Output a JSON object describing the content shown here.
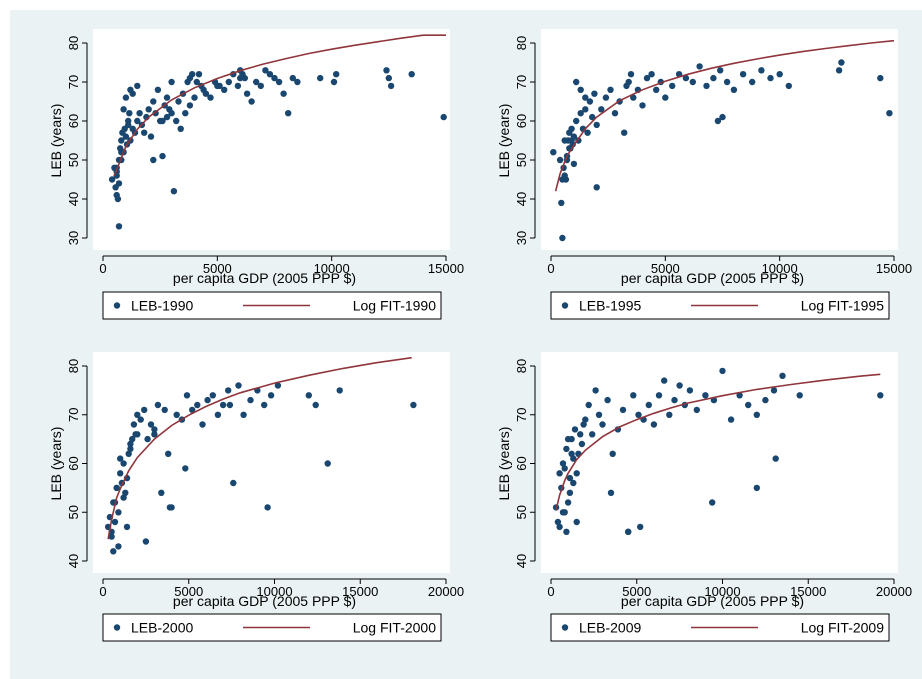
{
  "colors": {
    "background": "#eaf2f3",
    "plot_area": "#ffffff",
    "marker": "#1a476f",
    "fit_line": "#90353b"
  },
  "chart_data": [
    {
      "type": "scatter",
      "xlabel": "per capita GDP (2005 PPP $)",
      "ylabel": "LEB (years)",
      "xlim": [
        0,
        15000
      ],
      "ylim": [
        30,
        80
      ],
      "xticks": [
        0,
        5000,
        10000,
        15000
      ],
      "yticks": [
        30,
        40,
        50,
        60,
        70,
        80
      ],
      "legend": {
        "placement": "bottom",
        "entries": [
          "LEB-1990",
          "Log FIT-1990"
        ]
      },
      "series": [
        {
          "name": "LEB-1990",
          "kind": "points",
          "x": [
            400,
            500,
            550,
            600,
            650,
            700,
            750,
            800,
            850,
            900,
            950,
            1000,
            1050,
            1100,
            1150,
            1200,
            1300,
            1400,
            1500,
            1600,
            1700,
            1800,
            1900,
            2000,
            2100,
            2200,
            2300,
            2400,
            2500,
            2600,
            2700,
            2800,
            2900,
            3000,
            3100,
            3200,
            3300,
            3400,
            3500,
            3600,
            3700,
            3800,
            3900,
            4000,
            4100,
            4200,
            4300,
            4400,
            4500,
            4700,
            4900,
            5100,
            5300,
            5500,
            5700,
            5900,
            6000,
            6100,
            6200,
            6300,
            6500,
            6700,
            6900,
            7100,
            7300,
            7500,
            7700,
            7900,
            8100,
            8300,
            8500,
            700,
            600,
            900,
            1100,
            1300,
            1500,
            2800,
            3000,
            3800,
            5000,
            6000,
            9500,
            10100,
            10200,
            12400,
            12500,
            12600,
            13500,
            14900,
            600,
            800,
            1000,
            1200,
            600,
            700,
            800,
            2200,
            2600
          ],
          "y": [
            45,
            48,
            43,
            41,
            40,
            50,
            53,
            55,
            57,
            52,
            58,
            56,
            54,
            60,
            62,
            55,
            58,
            57,
            60,
            62,
            59,
            57,
            61,
            63,
            56,
            65,
            62,
            68,
            60,
            51,
            64,
            66,
            63,
            62,
            42,
            60,
            65,
            58,
            67,
            62,
            70,
            71,
            72,
            66,
            70,
            72,
            69,
            68,
            67,
            66,
            70,
            69,
            68,
            70,
            72,
            69,
            73,
            72,
            71,
            67,
            65,
            70,
            69,
            73,
            72,
            71,
            70,
            67,
            62,
            71,
            70,
            33,
            46,
            63,
            59,
            67,
            69,
            61,
            70,
            64,
            69,
            71,
            71,
            70,
            72,
            73,
            71,
            69,
            72,
            61,
            47,
            52,
            66,
            68,
            48,
            44,
            50,
            50,
            60
          ]
        },
        {
          "name": "Log FIT-1990",
          "kind": "line",
          "x": [
            500,
            1000,
            1500,
            2000,
            3000,
            4000,
            5000,
            6000,
            7000,
            8000,
            9000,
            10000,
            11000,
            12000,
            13000,
            14000,
            15000
          ],
          "y": [
            46,
            53.5,
            57.9,
            61,
            65.4,
            68.5,
            70.9,
            72.9,
            74.6,
            76,
            77.3,
            78.4,
            79.4,
            80.3,
            81.2,
            82,
            82.7
          ]
        }
      ]
    },
    {
      "type": "scatter",
      "xlabel": "per capita GDP (2005 PPP $)",
      "ylabel": "LEB (years)",
      "xlim": [
        0,
        15000
      ],
      "ylim": [
        30,
        80
      ],
      "xticks": [
        0,
        5000,
        10000,
        15000
      ],
      "yticks": [
        30,
        40,
        50,
        60,
        70,
        80
      ],
      "legend": {
        "placement": "bottom",
        "entries": [
          "LEB-1995",
          "Log FIT-1995"
        ]
      },
      "series": [
        {
          "name": "LEB-1995",
          "kind": "points",
          "x": [
            100,
            400,
            450,
            500,
            550,
            600,
            650,
            700,
            750,
            800,
            850,
            900,
            950,
            1000,
            1100,
            1200,
            1300,
            1400,
            1500,
            1600,
            1700,
            1800,
            1900,
            2000,
            2200,
            2400,
            2600,
            2800,
            3000,
            3200,
            3400,
            3600,
            3800,
            4000,
            4200,
            4400,
            4600,
            4800,
            5000,
            5300,
            5600,
            5900,
            6200,
            6500,
            6800,
            7100,
            7400,
            7700,
            8000,
            8400,
            8800,
            9200,
            9600,
            10000,
            10400,
            12600,
            12700,
            14400,
            14800,
            500,
            700,
            900,
            2000,
            1100,
            1300,
            1500,
            3300,
            3500,
            7300,
            7500,
            600,
            800,
            1000
          ],
          "y": [
            52,
            50,
            39,
            30,
            48,
            46,
            45,
            50,
            55,
            57,
            53,
            58,
            54,
            56,
            60,
            55,
            62,
            58,
            63,
            57,
            65,
            61,
            67,
            43,
            63,
            66,
            68,
            62,
            65,
            57,
            70,
            66,
            68,
            64,
            71,
            72,
            68,
            70,
            66,
            69,
            72,
            71,
            70,
            74,
            69,
            71,
            73,
            70,
            68,
            72,
            70,
            73,
            71,
            72,
            69,
            73,
            75,
            71,
            62,
            45,
            51,
            55,
            59,
            70,
            68,
            66,
            69,
            72,
            60,
            61,
            55,
            53,
            49
          ]
        },
        {
          "name": "Log FIT-1995",
          "kind": "line",
          "x": [
            200,
            400,
            700,
            1000,
            1500,
            2000,
            3000,
            4000,
            5000,
            6000,
            7000,
            8000,
            9000,
            10000,
            11000,
            12000,
            13000,
            14000,
            15000
          ],
          "y": [
            42,
            46.5,
            51,
            53.8,
            58,
            61,
            65.2,
            68,
            70.2,
            72,
            73.5,
            74.8,
            75.9,
            76.9,
            77.8,
            78.6,
            79.3,
            80,
            80.6
          ]
        }
      ]
    },
    {
      "type": "scatter",
      "xlabel": "per capita GDP (2005 PPP $)",
      "ylabel": "LEB (years)",
      "xlim": [
        0,
        20000
      ],
      "ylim": [
        40,
        80
      ],
      "xticks": [
        0,
        5000,
        10000,
        15000,
        20000
      ],
      "yticks": [
        40,
        50,
        60,
        70,
        80
      ],
      "legend": {
        "placement": "bottom",
        "entries": [
          "LEB-2000",
          "Log FIT-2000"
        ]
      },
      "series": [
        {
          "name": "LEB-2000",
          "kind": "points",
          "x": [
            300,
            500,
            600,
            700,
            800,
            900,
            1000,
            1100,
            1200,
            1300,
            1400,
            1500,
            1600,
            1700,
            1800,
            1900,
            2000,
            2200,
            2400,
            2600,
            2800,
            3000,
            3200,
            3400,
            3600,
            3800,
            4000,
            4300,
            4600,
            4900,
            5200,
            5500,
            5800,
            6100,
            6400,
            6700,
            7000,
            7300,
            7600,
            7900,
            8200,
            8600,
            9000,
            9400,
            9800,
            10200,
            12000,
            12400,
            13100,
            13800,
            18100,
            400,
            500,
            600,
            700,
            800,
            900,
            1000,
            1200,
            1400,
            2500,
            3000,
            3900,
            4800,
            7400,
            9600,
            1600,
            2000
          ],
          "y": [
            47,
            46,
            42,
            52,
            55,
            43,
            58,
            56,
            60,
            54,
            57,
            62,
            63,
            65,
            68,
            66,
            70,
            69,
            71,
            65,
            68,
            66,
            72,
            54,
            71,
            62,
            51,
            70,
            69,
            74,
            71,
            72,
            68,
            73,
            74,
            70,
            72,
            75,
            56,
            76,
            70,
            73,
            75,
            72,
            74,
            76,
            74,
            72,
            60,
            75,
            72,
            49,
            45,
            52,
            48,
            55,
            50,
            61,
            53,
            47,
            44,
            67,
            51,
            59,
            72,
            51,
            64,
            66
          ]
        },
        {
          "name": "Log FIT-2000",
          "kind": "line",
          "x": [
            300,
            500,
            800,
            1000,
            1500,
            2000,
            3000,
            4000,
            5000,
            6000,
            7000,
            8000,
            10000,
            12000,
            14000,
            16000,
            18000
          ],
          "y": [
            44.5,
            48.5,
            53,
            54.8,
            58.5,
            61.2,
            65,
            67.8,
            69.9,
            71.7,
            73.2,
            74.5,
            76.5,
            78.1,
            79.5,
            80.7,
            81.7
          ]
        }
      ]
    },
    {
      "type": "scatter",
      "xlabel": "per capita GDP (2005 PPP $)",
      "ylabel": "LEB (years)",
      "xlim": [
        0,
        20000
      ],
      "ylim": [
        40,
        80
      ],
      "xticks": [
        0,
        5000,
        10000,
        15000,
        20000
      ],
      "yticks": [
        40,
        50,
        60,
        70,
        80
      ],
      "legend": {
        "placement": "bottom",
        "entries": [
          "LEB-2009",
          "Log FIT-2009"
        ]
      },
      "series": [
        {
          "name": "LEB-2009",
          "kind": "points",
          "x": [
            300,
            400,
            500,
            600,
            700,
            800,
            900,
            1000,
            1100,
            1200,
            1300,
            1400,
            1500,
            1600,
            1700,
            1800,
            1900,
            2000,
            2200,
            2400,
            2600,
            2800,
            3000,
            3300,
            3600,
            3900,
            4200,
            4500,
            4800,
            5100,
            5400,
            5700,
            6000,
            6300,
            6600,
            6900,
            7200,
            7500,
            7800,
            8100,
            8500,
            9000,
            9500,
            10000,
            10500,
            11000,
            11500,
            12000,
            12500,
            13000,
            13500,
            14500,
            19200,
            500,
            700,
            900,
            1100,
            1300,
            1500,
            3500,
            4500,
            5200,
            9400,
            12000,
            13100,
            800,
            1000,
            1200
          ],
          "y": [
            51,
            48,
            58,
            55,
            60,
            50,
            63,
            52,
            57,
            65,
            61,
            67,
            58,
            62,
            66,
            64,
            68,
            69,
            72,
            66,
            75,
            70,
            68,
            73,
            62,
            67,
            71,
            46,
            74,
            70,
            69,
            72,
            68,
            74,
            77,
            70,
            73,
            76,
            72,
            75,
            71,
            74,
            73,
            79,
            69,
            74,
            72,
            70,
            73,
            75,
            78,
            74,
            74,
            47,
            50,
            46,
            54,
            56,
            48,
            54,
            46,
            47,
            52,
            55,
            61,
            59,
            65,
            62
          ]
        },
        {
          "name": "Log FIT-2009",
          "kind": "line",
          "x": [
            300,
            500,
            800,
            1000,
            1500,
            2000,
            3000,
            4000,
            5000,
            6000,
            7000,
            8000,
            10000,
            12000,
            14000,
            16000,
            18000,
            19200
          ],
          "y": [
            50.5,
            53.5,
            56.5,
            58,
            60.8,
            62.7,
            65.5,
            67.5,
            69,
            70.3,
            71.4,
            72.4,
            73.9,
            75.2,
            76.2,
            77.1,
            77.9,
            78.3
          ]
        }
      ]
    }
  ]
}
